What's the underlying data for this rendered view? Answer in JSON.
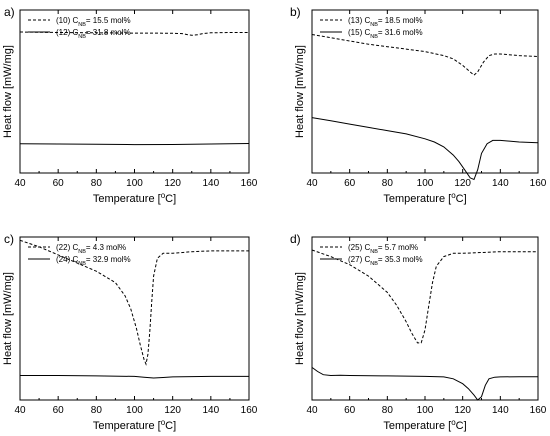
{
  "chart_data": [
    {
      "panel_label": "a)",
      "type": "line",
      "xlabel": "Temperature [°C]",
      "ylabel": "Heat flow [mW/mg]",
      "xlim": [
        40,
        160
      ],
      "xticks": [
        "40",
        "60",
        "80",
        "100",
        "120",
        "140",
        "160"
      ],
      "yticks": false,
      "legend_position": "top-left",
      "series": [
        {
          "name": "(10) C",
          "sub": "NB",
          "suffix": "= 15.5 mol%",
          "style": "dashed",
          "x": [
            40,
            60,
            80,
            100,
            110,
            120,
            125,
            128,
            130,
            133,
            136,
            140,
            150,
            160
          ],
          "y": [
            0.865,
            0.862,
            0.86,
            0.858,
            0.858,
            0.857,
            0.855,
            0.848,
            0.845,
            0.848,
            0.856,
            0.86,
            0.862,
            0.862
          ]
        },
        {
          "name": "(12) C",
          "sub": "NB",
          "suffix": "= 31.8 mol%",
          "style": "solid",
          "x": [
            40,
            60,
            80,
            100,
            120,
            140,
            160
          ],
          "y": [
            0.18,
            0.178,
            0.176,
            0.174,
            0.175,
            0.178,
            0.181
          ]
        }
      ]
    },
    {
      "panel_label": "b)",
      "type": "line",
      "xlabel": "Temperature [°C]",
      "ylabel": "Heat flow [mW/mg]",
      "xlim": [
        40,
        160
      ],
      "xticks": [
        "40",
        "60",
        "80",
        "100",
        "120",
        "140",
        "160"
      ],
      "yticks": false,
      "legend_position": "top-left",
      "series": [
        {
          "name": "(13) C",
          "sub": "NB",
          "suffix": "= 18.5 mol%",
          "style": "dashed",
          "x": [
            40,
            50,
            60,
            70,
            80,
            90,
            100,
            110,
            115,
            120,
            123,
            126,
            128,
            131,
            134,
            137,
            140,
            150,
            160
          ],
          "y": [
            0.85,
            0.83,
            0.81,
            0.79,
            0.775,
            0.76,
            0.745,
            0.72,
            0.7,
            0.66,
            0.63,
            0.6,
            0.62,
            0.68,
            0.72,
            0.73,
            0.73,
            0.72,
            0.715
          ]
        },
        {
          "name": "(15) C",
          "sub": "NB",
          "suffix": "= 31.6 mol%",
          "style": "solid",
          "x": [
            40,
            50,
            60,
            70,
            80,
            90,
            100,
            105,
            110,
            115,
            118,
            121,
            124,
            126,
            128,
            130,
            133,
            136,
            140,
            150,
            160
          ],
          "y": [
            0.34,
            0.32,
            0.3,
            0.28,
            0.26,
            0.24,
            0.21,
            0.19,
            0.16,
            0.11,
            0.07,
            0.02,
            -0.03,
            -0.04,
            0.02,
            0.12,
            0.18,
            0.2,
            0.2,
            0.19,
            0.185
          ]
        }
      ]
    },
    {
      "panel_label": "c)",
      "type": "line",
      "xlabel": "Temperature [°C]",
      "ylabel": "Heat flow [mW/mg]",
      "xlim": [
        40,
        160
      ],
      "xticks": [
        "40",
        "60",
        "80",
        "100",
        "120",
        "140",
        "160"
      ],
      "yticks": false,
      "legend_position": "top-left",
      "series": [
        {
          "name": "(22) C",
          "sub": "NB",
          "suffix": "= 4.3 mol%",
          "style": "dashed",
          "x": [
            40,
            50,
            60,
            70,
            80,
            90,
            95,
            98,
            101,
            103,
            105,
            106,
            107,
            108,
            109,
            110,
            112,
            115,
            120,
            130,
            140,
            150,
            160
          ],
          "y": [
            0.98,
            0.94,
            0.89,
            0.84,
            0.79,
            0.72,
            0.64,
            0.56,
            0.44,
            0.34,
            0.25,
            0.22,
            0.28,
            0.42,
            0.6,
            0.76,
            0.87,
            0.9,
            0.9,
            0.91,
            0.915,
            0.915,
            0.915
          ]
        },
        {
          "name": "(24) C",
          "sub": "NB",
          "suffix": "= 32.9 mol%",
          "style": "solid",
          "x": [
            40,
            60,
            80,
            100,
            105,
            110,
            115,
            120,
            140,
            160
          ],
          "y": [
            0.15,
            0.15,
            0.148,
            0.145,
            0.14,
            0.135,
            0.138,
            0.142,
            0.145,
            0.145
          ]
        }
      ]
    },
    {
      "panel_label": "d)",
      "type": "line",
      "xlabel": "Temperature [°C]",
      "ylabel": "Heat flow [mW/mg]",
      "xlim": [
        40,
        160
      ],
      "xticks": [
        "40",
        "60",
        "80",
        "100",
        "120",
        "140",
        "160"
      ],
      "yticks": false,
      "legend_position": "top-left",
      "series": [
        {
          "name": "(25) C",
          "sub": "NB",
          "suffix": "= 5.7 mol%",
          "style": "dashed",
          "x": [
            40,
            50,
            60,
            70,
            80,
            85,
            90,
            93,
            96,
            98,
            100,
            102,
            104,
            106,
            110,
            115,
            120,
            130,
            140,
            150,
            160
          ],
          "y": [
            0.92,
            0.88,
            0.83,
            0.76,
            0.66,
            0.58,
            0.48,
            0.41,
            0.35,
            0.35,
            0.43,
            0.58,
            0.72,
            0.82,
            0.88,
            0.9,
            0.9,
            0.905,
            0.91,
            0.91,
            0.91
          ]
        },
        {
          "name": "(27) C",
          "sub": "NB",
          "suffix": "= 35.3 mol%",
          "style": "solid",
          "x": [
            40,
            43,
            46,
            50,
            55,
            60,
            80,
            100,
            110,
            115,
            120,
            123,
            126,
            128,
            130,
            132,
            134,
            137,
            140,
            150,
            160
          ],
          "y": [
            0.2,
            0.175,
            0.155,
            0.15,
            0.152,
            0.15,
            0.148,
            0.145,
            0.142,
            0.13,
            0.1,
            0.07,
            0.03,
            0.0,
            0.02,
            0.09,
            0.13,
            0.14,
            0.142,
            0.143,
            0.143
          ]
        }
      ]
    }
  ]
}
